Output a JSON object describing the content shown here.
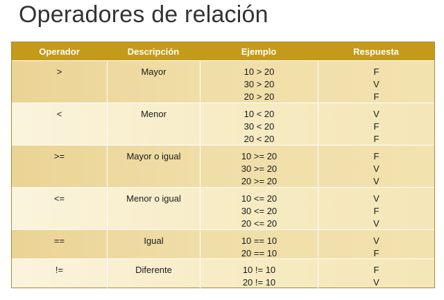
{
  "title": "Operadores de relación",
  "headers": {
    "operador": "Operador",
    "descripcion": "Descripción",
    "ejemplo": "Ejemplo",
    "respuesta": "Respuesta"
  },
  "rows": [
    {
      "op": ">",
      "desc": "Mayor",
      "ex": [
        "10 > 20",
        "30 > 20",
        "20 > 20"
      ],
      "resp": [
        "F",
        "V",
        "F"
      ]
    },
    {
      "op": "<",
      "desc": "Menor",
      "ex": [
        "10 < 20",
        "30 < 20",
        "20 < 20"
      ],
      "resp": [
        "V",
        "F",
        "F"
      ]
    },
    {
      "op": ">=",
      "desc": "Mayor o igual",
      "ex": [
        "10 >= 20",
        "30 >= 20",
        "20 >= 20"
      ],
      "resp": [
        "F",
        "V",
        "V"
      ]
    },
    {
      "op": "<=",
      "desc": "Menor o igual",
      "ex": [
        "10 <= 20",
        "30 <= 20",
        "20 <= 20"
      ],
      "resp": [
        "V",
        "F",
        "V"
      ]
    },
    {
      "op": "==",
      "desc": "Igual",
      "ex": [
        "10 == 10",
        "20 == 10"
      ],
      "resp": [
        "V",
        "F"
      ]
    },
    {
      "op": "!=",
      "desc": "Diferente",
      "ex": [
        "10 != 10",
        "20 != 10"
      ],
      "resp": [
        "F",
        "V"
      ]
    }
  ],
  "colors": {
    "header_bg": "#c49a1a",
    "row_dark": "#ead394",
    "row_light": "#fbf4dd",
    "title_text": "#333333"
  }
}
